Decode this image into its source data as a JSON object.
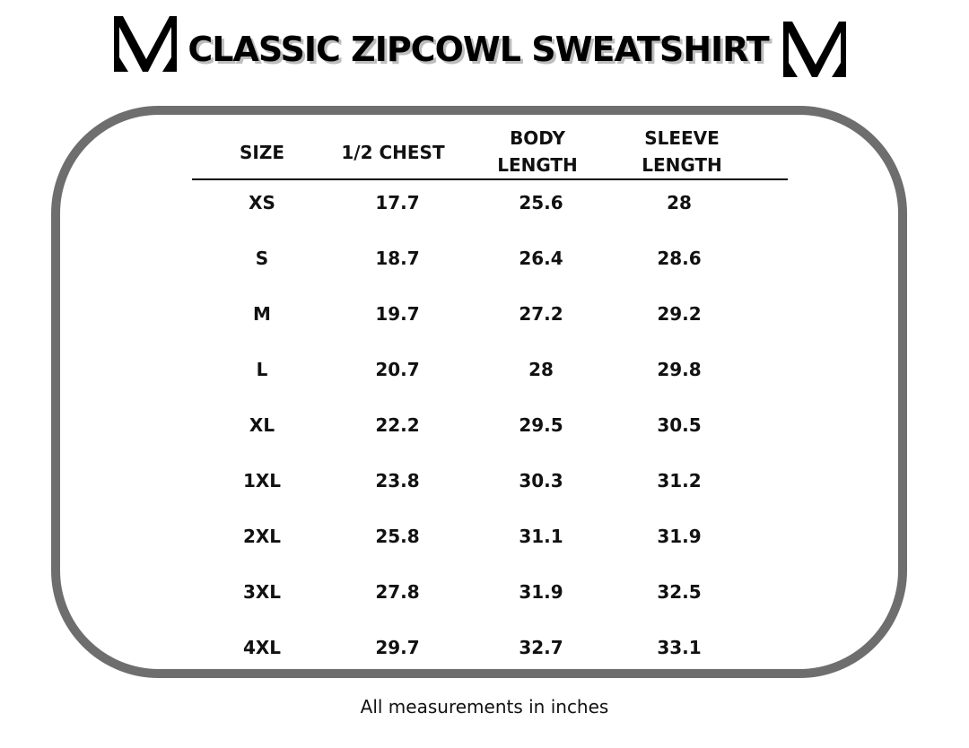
{
  "title": "CLASSIC ZIPCOWL SWEATSHIRT",
  "logo_icon": "v-monogram-icon",
  "columns": [
    {
      "line1": "SIZE",
      "line2": ""
    },
    {
      "line1": "1/2 CHEST",
      "line2": ""
    },
    {
      "line1": "BODY",
      "line2": "LENGTH"
    },
    {
      "line1": "SLEEVE",
      "line2": "LENGTH"
    }
  ],
  "rows": [
    [
      "XS",
      "17.7",
      "25.6",
      "28"
    ],
    [
      "S",
      "18.7",
      "26.4",
      "28.6"
    ],
    [
      "M",
      "19.7",
      "27.2",
      "29.2"
    ],
    [
      "L",
      "20.7",
      "28",
      "29.8"
    ],
    [
      "XL",
      "22.2",
      "29.5",
      "30.5"
    ],
    [
      "1XL",
      "23.8",
      "30.3",
      "31.2"
    ],
    [
      "2XL",
      "25.8",
      "31.1",
      "31.9"
    ],
    [
      "3XL",
      "27.8",
      "31.9",
      "32.5"
    ],
    [
      "4XL",
      "29.7",
      "32.7",
      "33.1"
    ]
  ],
  "footnote": "All measurements in inches",
  "colors": {
    "frame": "#6e6e6e",
    "text": "#111111",
    "title_shadow": "#bdbdbd"
  }
}
